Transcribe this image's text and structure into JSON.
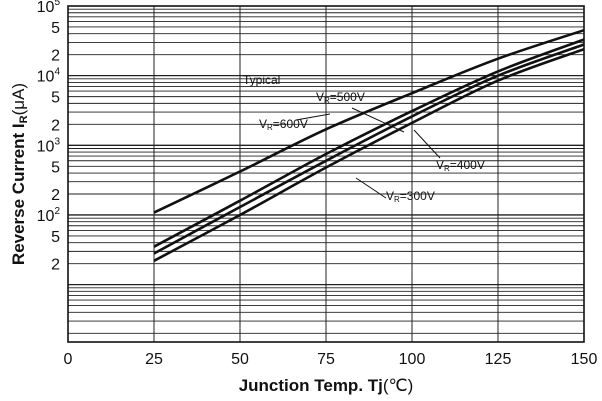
{
  "chart_data": {
    "type": "line",
    "title": "",
    "xlabel": "Junction Temp. Tj (℃)",
    "ylabel": "Reverse Current IR (μA)",
    "xlim": [
      0,
      150
    ],
    "ylim": [
      1.5,
      100000
    ],
    "y_scale": "log",
    "grid": true,
    "x_ticks": [
      0,
      25,
      50,
      75,
      100,
      125,
      150
    ],
    "x_tick_labels": [
      "0",
      "25",
      "50",
      "75",
      "100",
      "125",
      "150"
    ],
    "y_tick_labels": [
      {
        "value": 100000,
        "mantissa": "10",
        "exponent": "5"
      },
      {
        "value": 50000,
        "mantissa": "5",
        "exponent": ""
      },
      {
        "value": 20000,
        "mantissa": "2",
        "exponent": ""
      },
      {
        "value": 10000,
        "mantissa": "10",
        "exponent": "4"
      },
      {
        "value": 5000,
        "mantissa": "5",
        "exponent": ""
      },
      {
        "value": 2000,
        "mantissa": "2",
        "exponent": ""
      },
      {
        "value": 1000,
        "mantissa": "10",
        "exponent": "3"
      },
      {
        "value": 500,
        "mantissa": "5",
        "exponent": ""
      },
      {
        "value": 200,
        "mantissa": "2",
        "exponent": ""
      },
      {
        "value": 100,
        "mantissa": "10",
        "exponent": "2"
      },
      {
        "value": 50,
        "mantissa": "5",
        "exponent": ""
      },
      {
        "value": 20,
        "mantissa": "2",
        "exponent": ""
      }
    ],
    "annotation": "Typical",
    "series": [
      {
        "name": "VR=600V",
        "x": [
          25,
          50,
          75,
          100,
          125,
          150
        ],
        "values": [
          108,
          420,
          1700,
          5600,
          17500,
          45000
        ]
      },
      {
        "name": "VR=500V",
        "x": [
          25,
          50,
          75,
          100,
          125,
          150
        ],
        "values": [
          35,
          160,
          750,
          3100,
          11500,
          33000
        ]
      },
      {
        "name": "VR=400V",
        "x": [
          25,
          50,
          75,
          100,
          125,
          150
        ],
        "values": [
          28,
          130,
          600,
          2600,
          10000,
          28000
        ]
      },
      {
        "name": "VR=300V",
        "x": [
          25,
          50,
          75,
          100,
          125,
          150
        ],
        "values": [
          22,
          100,
          480,
          2100,
          8500,
          24000
        ]
      }
    ],
    "labels": {
      "vr600": {
        "main": "V",
        "sub": "R",
        "rest": "=600V"
      },
      "vr500": {
        "main": "V",
        "sub": "R",
        "rest": "=500V"
      },
      "vr400": {
        "main": "V",
        "sub": "R",
        "rest": "=400V"
      },
      "vr300": {
        "main": "V",
        "sub": "R",
        "rest": "=300V"
      }
    },
    "axis_titles": {
      "x_main": "Junction Temp. Tj",
      "x_unit": "(℃)",
      "y_main": "Reverse Current I",
      "y_sub": "R",
      "y_unit": "(μA)"
    }
  }
}
